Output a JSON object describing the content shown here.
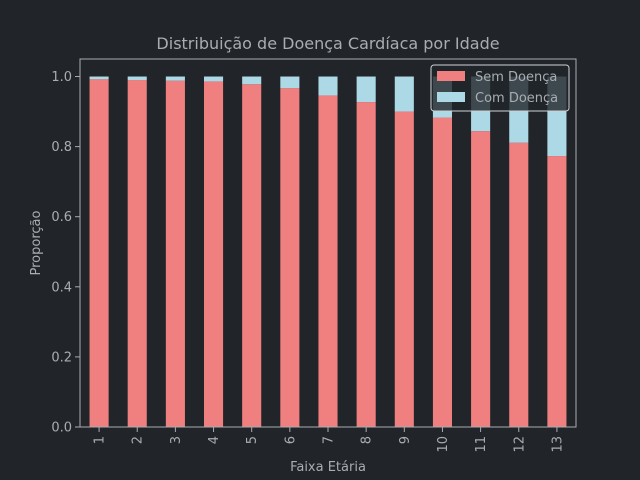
{
  "chart_data": {
    "type": "bar",
    "stacked": true,
    "title": "Distribuição de Doença Cardíaca por Idade",
    "xlabel": "Faixa Etária",
    "ylabel": "Proporção",
    "ylim": [
      0,
      1.0
    ],
    "yticks": [
      "0.0",
      "0.2",
      "0.4",
      "0.6",
      "0.8",
      "1.0"
    ],
    "categories": [
      "1",
      "2",
      "3",
      "4",
      "5",
      "6",
      "7",
      "8",
      "9",
      "10",
      "11",
      "12",
      "13"
    ],
    "series": [
      {
        "name": "Sem Doença",
        "color": "#f08080",
        "values": [
          0.992,
          0.99,
          0.988,
          0.986,
          0.978,
          0.967,
          0.946,
          0.927,
          0.9,
          0.883,
          0.844,
          0.811,
          0.773
        ]
      },
      {
        "name": "Com Doença",
        "color": "#add8e6",
        "values": [
          0.008,
          0.01,
          0.012,
          0.014,
          0.022,
          0.033,
          0.054,
          0.073,
          0.1,
          0.117,
          0.156,
          0.189,
          0.227
        ]
      }
    ],
    "legend_position": "top-right",
    "grid": false,
    "background": "#212529",
    "text_color": "#a9adb2"
  }
}
